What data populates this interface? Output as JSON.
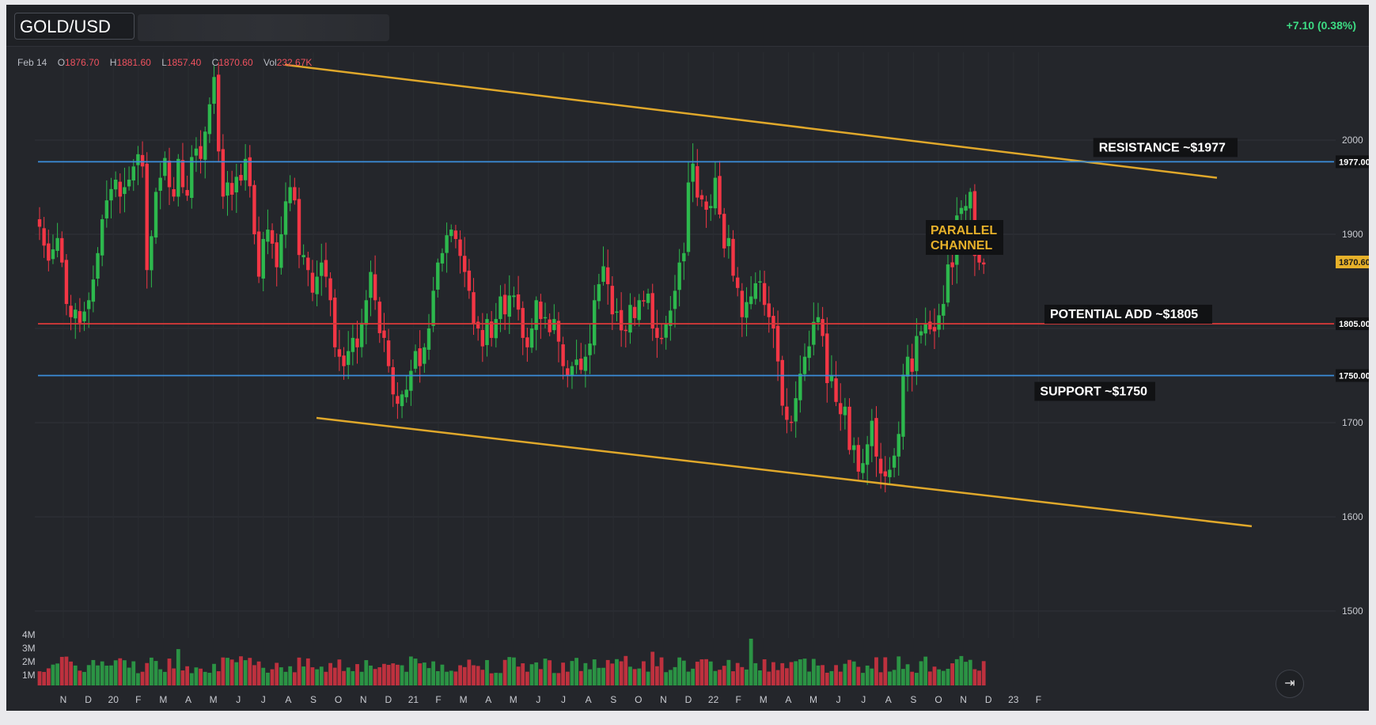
{
  "header": {
    "symbol": "GOLD/USD",
    "change": "+7.10 (0.38%)"
  },
  "ohlc": {
    "date": "Feb 14",
    "open_label": "O",
    "open": "1876.70",
    "high_label": "H",
    "high": "1881.60",
    "low_label": "L",
    "low": "1857.40",
    "close_label": "C",
    "close": "1870.60",
    "vol_label": "Vol",
    "vol": "232.67K"
  },
  "colors": {
    "up": "#2db84d",
    "down": "#f23645",
    "channel": "#e0a82b",
    "level_blue": "#3b8edb",
    "level_red": "#d13838",
    "background": "#24262b"
  },
  "goto_realtime_icon": "arrow-to-right-icon",
  "chart_data": {
    "type": "candlestick",
    "title": "GOLD/USD",
    "y_range": [
      1415,
      2095
    ],
    "y_ticks": [
      1500,
      1600,
      1700,
      1800,
      1900,
      2000
    ],
    "y_tick_labels": [
      "1500",
      "1600",
      "1700",
      "",
      "1900",
      "2000"
    ],
    "x_ticks": [
      "N",
      "D",
      "20",
      "F",
      "M",
      "A",
      "M",
      "J",
      "J",
      "A",
      "S",
      "O",
      "N",
      "D",
      "21",
      "F",
      "M",
      "A",
      "M",
      "J",
      "J",
      "A",
      "S",
      "O",
      "N",
      "D",
      "22",
      "F",
      "M",
      "A",
      "M",
      "J",
      "J",
      "A",
      "S",
      "O",
      "N",
      "D",
      "23",
      "F"
    ],
    "volume_ticks": [
      "4M",
      "3M",
      "2M",
      "1M"
    ],
    "volume_range_millions": [
      0,
      4.5
    ],
    "weekly_closes": [
      1908,
      1888,
      1872,
      1884,
      1896,
      1870,
      1826,
      1812,
      1820,
      1806,
      1818,
      1830,
      1852,
      1880,
      1916,
      1936,
      1948,
      1958,
      1940,
      1950,
      1958,
      1972,
      1985,
      1972,
      1862,
      1898,
      1945,
      1960,
      1981,
      1950,
      1940,
      1980,
      1950,
      1941,
      1982,
      1991,
      1980,
      2009,
      2038,
      2067,
      1988,
      1940,
      1955,
      1942,
      1961,
      1957,
      1980,
      1951,
      1900,
      1855,
      1895,
      1905,
      1890,
      1865,
      1900,
      1935,
      1950,
      1936,
      1878,
      1878,
      1862,
      1838,
      1855,
      1870,
      1855,
      1830,
      1780,
      1770,
      1760,
      1776,
      1790,
      1780,
      1806,
      1830,
      1860,
      1830,
      1795,
      1790,
      1760,
      1730,
      1720,
      1730,
      1735,
      1755,
      1776,
      1760,
      1780,
      1800,
      1840,
      1870,
      1880,
      1899,
      1905,
      1895,
      1877,
      1860,
      1840,
      1805,
      1800,
      1781,
      1810,
      1790,
      1810,
      1834,
      1815,
      1835,
      1835,
      1820,
      1790,
      1780,
      1800,
      1830,
      1810,
      1812,
      1796,
      1810,
      1786,
      1760,
      1750,
      1760,
      1767,
      1756,
      1770,
      1784,
      1830,
      1847,
      1866,
      1847,
      1815,
      1818,
      1798,
      1798,
      1825,
      1811,
      1830,
      1829,
      1837,
      1800,
      1790,
      1790,
      1805,
      1819,
      1840,
      1870,
      1880,
      1955,
      1975,
      1939,
      1937,
      1926,
      1930,
      1960,
      1921,
      1885,
      1896,
      1856,
      1843,
      1812,
      1828,
      1834,
      1848,
      1850,
      1825,
      1812,
      1800,
      1765,
      1718,
      1703,
      1700,
      1726,
      1752,
      1770,
      1781,
      1807,
      1812,
      1792,
      1742,
      1750,
      1722,
      1709,
      1717,
      1671,
      1676,
      1648,
      1657,
      1677,
      1702,
      1664,
      1646,
      1643,
      1650,
      1665,
      1688,
      1751,
      1770,
      1754,
      1792,
      1797,
      1805,
      1799,
      1797,
      1814,
      1826,
      1868,
      1865,
      1920,
      1928,
      1930,
      1945,
      1877,
      1870,
      1868
    ],
    "levels": [
      {
        "label": "RESISTANCE ~$1977",
        "value": 1977,
        "tag": "1977.00",
        "color": "blue"
      },
      {
        "label": "POTENTIAL ADD ~$1805",
        "value": 1805,
        "tag": "1805.00",
        "color": "red"
      },
      {
        "label": "SUPPORT ~$1750",
        "value": 1750,
        "tag": "1750.00",
        "color": "blue"
      }
    ],
    "last_price_tag": "1870.60",
    "channel_label": [
      "PARALLEL",
      "CHANNEL"
    ],
    "channel_upper": [
      {
        "x": "A 2020",
        "y": 2080
      },
      {
        "x": "F 2023",
        "y": 1960
      }
    ],
    "channel_lower": [
      {
        "x": "S 2020",
        "y": 1705
      },
      {
        "x": "F 2023",
        "y": 1590
      }
    ],
    "grid": true
  }
}
